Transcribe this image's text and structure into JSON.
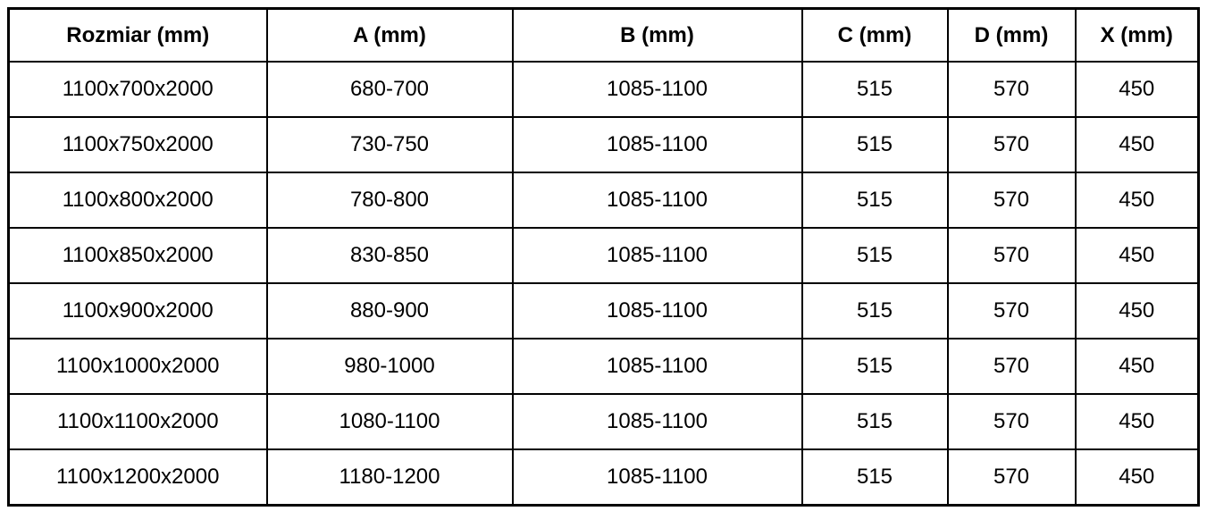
{
  "table": {
    "columns": [
      "Rozmiar (mm)",
      "A (mm)",
      "B (mm)",
      "C (mm)",
      "D (mm)",
      "X (mm)"
    ],
    "rows": [
      [
        "1100x700x2000",
        "680-700",
        "1085-1100",
        "515",
        "570",
        "450"
      ],
      [
        "1100x750x2000",
        "730-750",
        "1085-1100",
        "515",
        "570",
        "450"
      ],
      [
        "1100x800x2000",
        "780-800",
        "1085-1100",
        "515",
        "570",
        "450"
      ],
      [
        "1100x850x2000",
        "830-850",
        "1085-1100",
        "515",
        "570",
        "450"
      ],
      [
        "1100x900x2000",
        "880-900",
        "1085-1100",
        "515",
        "570",
        "450"
      ],
      [
        "1100x1000x2000",
        "980-1000",
        "1085-1100",
        "515",
        "570",
        "450"
      ],
      [
        "1100x1100x2000",
        "1080-1100",
        "1085-1100",
        "515",
        "570",
        "450"
      ],
      [
        "1100x1200x2000",
        "1180-1200",
        "1085-1100",
        "515",
        "570",
        "450"
      ]
    ],
    "colors": {
      "border": "#000000",
      "text": "#000000",
      "background": "#ffffff"
    }
  }
}
